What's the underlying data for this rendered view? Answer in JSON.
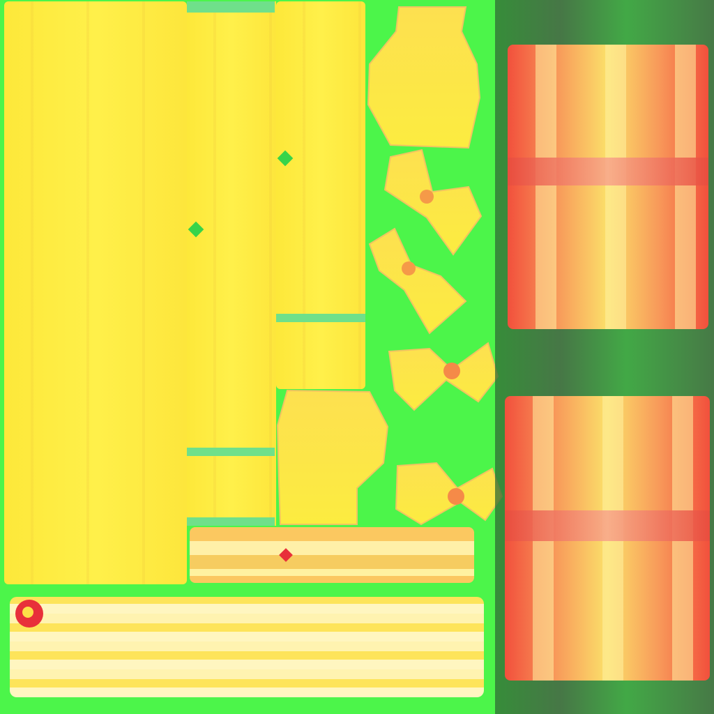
{
  "texture": {
    "background_color": "#4cf54a",
    "palette": {
      "yellow": "#fde83a",
      "mint": "#6fe08a",
      "red": "#f2503c",
      "orange": "#f89a5a",
      "dark_side": "#454d45",
      "marker_red": "#e8303a"
    }
  }
}
